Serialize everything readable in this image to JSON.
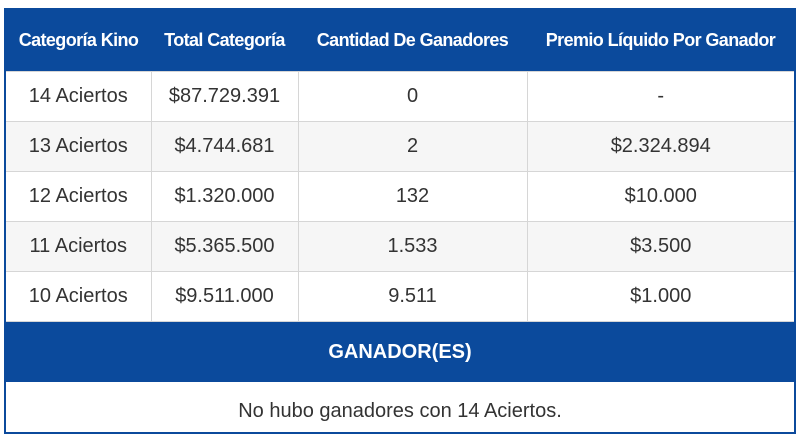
{
  "table": {
    "headers": [
      "Categoría Kino",
      "Total Categoría",
      "Cantidad De Ganadores",
      "Premio Líquido Por Ganador"
    ],
    "rows": [
      [
        "14 Aciertos",
        "$87.729.391",
        "0",
        "-"
      ],
      [
        "13 Aciertos",
        "$4.744.681",
        "2",
        "$2.324.894"
      ],
      [
        "12 Aciertos",
        "$1.320.000",
        "132",
        "$10.000"
      ],
      [
        "11 Aciertos",
        "$5.365.500",
        "1.533",
        "$3.500"
      ],
      [
        "10 Aciertos",
        "$9.511.000",
        "9.511",
        "$1.000"
      ]
    ]
  },
  "winners": {
    "title": "GANADOR(ES)",
    "message": "No hubo ganadores con 14 Aciertos."
  },
  "colors": {
    "header_bg": "#0b4a9c",
    "header_text": "#ffffff",
    "border": "#d6d6d6",
    "text": "#333333"
  }
}
